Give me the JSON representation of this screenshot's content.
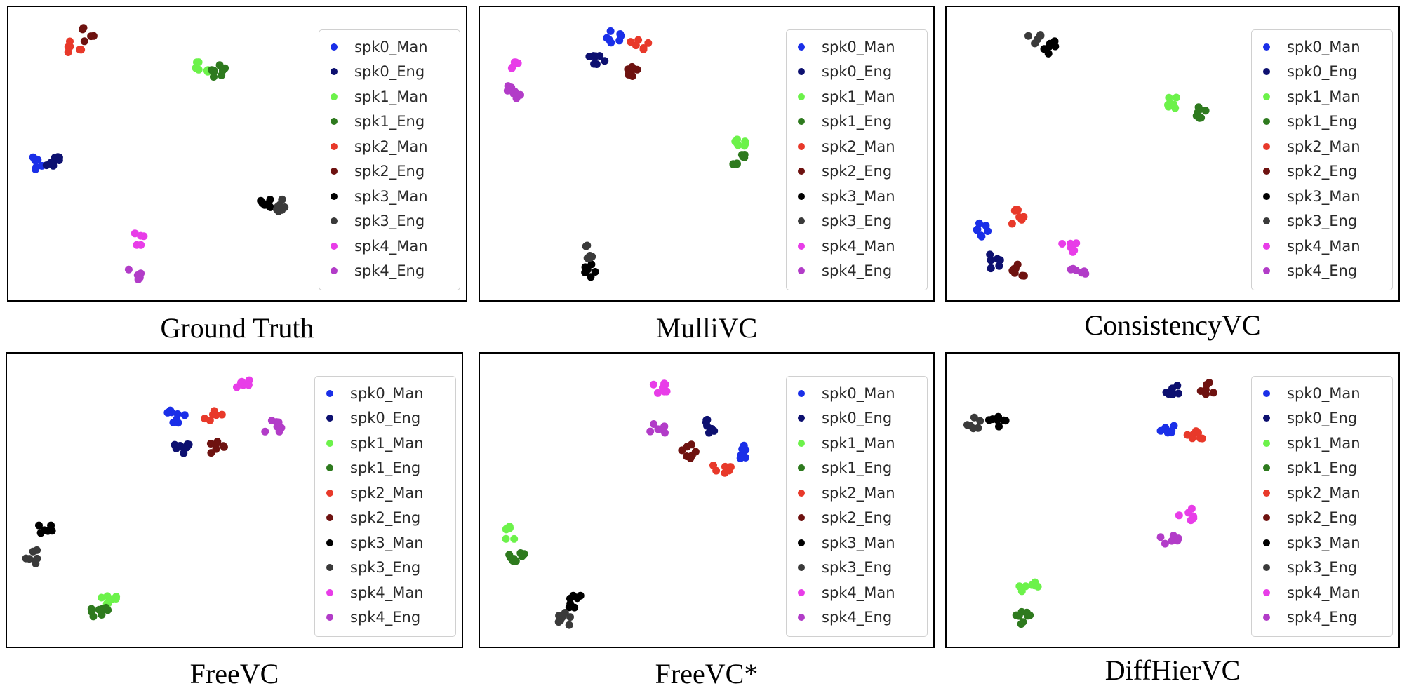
{
  "legend": {
    "entries": [
      "spk0_Man",
      "spk0_Eng",
      "spk1_Man",
      "spk1_Eng",
      "spk2_Man",
      "spk2_Eng",
      "spk3_Man",
      "spk3_Eng",
      "spk4_Man",
      "spk4_Eng"
    ],
    "colors": [
      "#1a2fe8",
      "#0d1070",
      "#6cf24a",
      "#2e7a1e",
      "#e8392a",
      "#6e1210",
      "#000000",
      "#3a3a3a",
      "#e83de8",
      "#b23cc8"
    ]
  },
  "chart_data": [
    {
      "type": "scatter",
      "caption": "Ground Truth",
      "axis_ticks": "none",
      "legend_placement": "right",
      "clusters": [
        {
          "series": "spk0_Man",
          "center": [
            0.06,
            0.53
          ],
          "n": 7
        },
        {
          "series": "spk0_Eng",
          "center": [
            0.1,
            0.53
          ],
          "n": 8
        },
        {
          "series": "spk1_Man",
          "center": [
            0.42,
            0.2
          ],
          "n": 7
        },
        {
          "series": "spk1_Eng",
          "center": [
            0.45,
            0.21
          ],
          "n": 8
        },
        {
          "series": "spk2_Man",
          "center": [
            0.14,
            0.14
          ],
          "n": 6
        },
        {
          "series": "spk2_Eng",
          "center": [
            0.17,
            0.09
          ],
          "n": 6
        },
        {
          "series": "spk3_Man",
          "center": [
            0.56,
            0.67
          ],
          "n": 8
        },
        {
          "series": "spk3_Eng",
          "center": [
            0.6,
            0.67
          ],
          "n": 8
        },
        {
          "series": "spk4_Man",
          "center": [
            0.28,
            0.78
          ],
          "n": 5
        },
        {
          "series": "spk4_Eng",
          "center": [
            0.27,
            0.9
          ],
          "n": 6
        }
      ]
    },
    {
      "type": "scatter",
      "caption": "MulliVC",
      "axis_ticks": "none",
      "legend_placement": "right",
      "clusters": [
        {
          "series": "spk0_Man",
          "center": [
            0.29,
            0.1
          ],
          "n": 7
        },
        {
          "series": "spk0_Eng",
          "center": [
            0.26,
            0.17
          ],
          "n": 7
        },
        {
          "series": "spk1_Man",
          "center": [
            0.58,
            0.46
          ],
          "n": 7
        },
        {
          "series": "spk1_Eng",
          "center": [
            0.57,
            0.52
          ],
          "n": 8
        },
        {
          "series": "spk2_Man",
          "center": [
            0.35,
            0.12
          ],
          "n": 6
        },
        {
          "series": "spk2_Eng",
          "center": [
            0.34,
            0.22
          ],
          "n": 6
        },
        {
          "series": "spk3_Man",
          "center": [
            0.24,
            0.89
          ],
          "n": 7
        },
        {
          "series": "spk3_Eng",
          "center": [
            0.24,
            0.83
          ],
          "n": 6
        },
        {
          "series": "spk4_Man",
          "center": [
            0.07,
            0.19
          ],
          "n": 5
        },
        {
          "series": "spk4_Eng",
          "center": [
            0.07,
            0.29
          ],
          "n": 7
        }
      ]
    },
    {
      "type": "scatter",
      "caption": "ConsistencyVC",
      "axis_ticks": "none",
      "legend_placement": "right",
      "clusters": [
        {
          "series": "spk0_Man",
          "center": [
            0.08,
            0.75
          ],
          "n": 7
        },
        {
          "series": "spk0_Eng",
          "center": [
            0.1,
            0.86
          ],
          "n": 7
        },
        {
          "series": "spk1_Man",
          "center": [
            0.5,
            0.32
          ],
          "n": 7
        },
        {
          "series": "spk1_Eng",
          "center": [
            0.56,
            0.36
          ],
          "n": 8
        },
        {
          "series": "spk2_Man",
          "center": [
            0.15,
            0.71
          ],
          "n": 7
        },
        {
          "series": "spk2_Eng",
          "center": [
            0.16,
            0.89
          ],
          "n": 7
        },
        {
          "series": "spk3_Man",
          "center": [
            0.23,
            0.14
          ],
          "n": 7
        },
        {
          "series": "spk3_Eng",
          "center": [
            0.19,
            0.1
          ],
          "n": 7
        },
        {
          "series": "spk4_Man",
          "center": [
            0.27,
            0.81
          ],
          "n": 6
        },
        {
          "series": "spk4_Eng",
          "center": [
            0.29,
            0.89
          ],
          "n": 6
        }
      ]
    },
    {
      "type": "scatter",
      "caption": "FreeVC",
      "axis_ticks": "none",
      "legend_placement": "right",
      "clusters": [
        {
          "series": "spk0_Man",
          "center": [
            0.37,
            0.21
          ],
          "n": 8
        },
        {
          "series": "spk0_Eng",
          "center": [
            0.38,
            0.32
          ],
          "n": 8
        },
        {
          "series": "spk1_Man",
          "center": [
            0.22,
            0.82
          ],
          "n": 7
        },
        {
          "series": "spk1_Eng",
          "center": [
            0.2,
            0.87
          ],
          "n": 8
        },
        {
          "series": "spk2_Man",
          "center": [
            0.45,
            0.21
          ],
          "n": 6
        },
        {
          "series": "spk2_Eng",
          "center": [
            0.46,
            0.32
          ],
          "n": 7
        },
        {
          "series": "spk3_Man",
          "center": [
            0.08,
            0.59
          ],
          "n": 6
        },
        {
          "series": "spk3_Eng",
          "center": [
            0.06,
            0.69
          ],
          "n": 7
        },
        {
          "series": "spk4_Man",
          "center": [
            0.52,
            0.1
          ],
          "n": 7
        },
        {
          "series": "spk4_Eng",
          "center": [
            0.58,
            0.25
          ],
          "n": 7
        }
      ]
    },
    {
      "type": "scatter",
      "caption": "FreeVC*",
      "axis_ticks": "none",
      "legend_placement": "right",
      "clusters": [
        {
          "series": "spk0_Man",
          "center": [
            0.58,
            0.33
          ],
          "n": 7
        },
        {
          "series": "spk0_Eng",
          "center": [
            0.5,
            0.25
          ],
          "n": 7
        },
        {
          "series": "spk1_Man",
          "center": [
            0.06,
            0.61
          ],
          "n": 7
        },
        {
          "series": "spk1_Eng",
          "center": [
            0.08,
            0.68
          ],
          "n": 8
        },
        {
          "series": "spk2_Man",
          "center": [
            0.53,
            0.39
          ],
          "n": 7
        },
        {
          "series": "spk2_Eng",
          "center": [
            0.46,
            0.33
          ],
          "n": 7
        },
        {
          "series": "spk3_Man",
          "center": [
            0.21,
            0.84
          ],
          "n": 7
        },
        {
          "series": "spk3_Eng",
          "center": [
            0.19,
            0.9
          ],
          "n": 7
        },
        {
          "series": "spk4_Man",
          "center": [
            0.39,
            0.12
          ],
          "n": 7
        },
        {
          "series": "spk4_Eng",
          "center": [
            0.39,
            0.25
          ],
          "n": 7
        }
      ]
    },
    {
      "type": "scatter",
      "caption": "DiffHierVC",
      "axis_ticks": "none",
      "legend_placement": "right",
      "clusters": [
        {
          "series": "spk0_Man",
          "center": [
            0.49,
            0.26
          ],
          "n": 7
        },
        {
          "series": "spk0_Eng",
          "center": [
            0.5,
            0.12
          ],
          "n": 7
        },
        {
          "series": "spk1_Man",
          "center": [
            0.18,
            0.79
          ],
          "n": 7
        },
        {
          "series": "spk1_Eng",
          "center": [
            0.17,
            0.89
          ],
          "n": 8
        },
        {
          "series": "spk2_Man",
          "center": [
            0.55,
            0.27
          ],
          "n": 7
        },
        {
          "series": "spk2_Eng",
          "center": [
            0.57,
            0.12
          ],
          "n": 6
        },
        {
          "series": "spk3_Man",
          "center": [
            0.11,
            0.23
          ],
          "n": 7
        },
        {
          "series": "spk3_Eng",
          "center": [
            0.06,
            0.23
          ],
          "n": 6
        },
        {
          "series": "spk4_Man",
          "center": [
            0.53,
            0.54
          ],
          "n": 6
        },
        {
          "series": "spk4_Eng",
          "center": [
            0.49,
            0.63
          ],
          "n": 6
        }
      ]
    }
  ]
}
